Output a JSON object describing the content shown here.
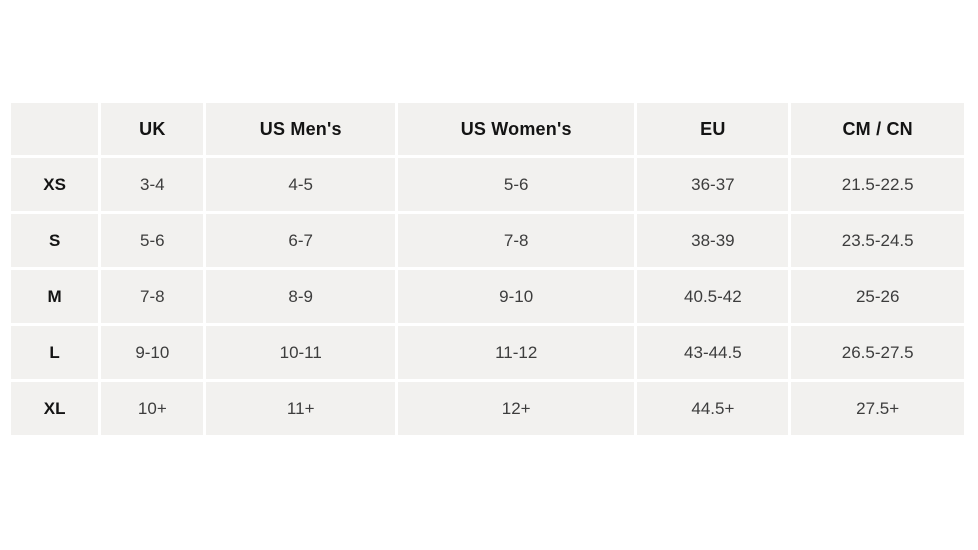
{
  "size_chart": {
    "columns": [
      "",
      "UK",
      "US Men's",
      "US Women's",
      "EU",
      "CM / CN"
    ],
    "rows": [
      {
        "size": "XS",
        "values": [
          "3-4",
          "4-5",
          "5-6",
          "36-37",
          "21.5-22.5"
        ]
      },
      {
        "size": "S",
        "values": [
          "5-6",
          "6-7",
          "7-8",
          "38-39",
          "23.5-24.5"
        ]
      },
      {
        "size": "M",
        "values": [
          "7-8",
          "8-9",
          "9-10",
          "40.5-42",
          "25-26"
        ]
      },
      {
        "size": "L",
        "values": [
          "9-10",
          "10-11",
          "11-12",
          "43-44.5",
          "26.5-27.5"
        ]
      },
      {
        "size": "XL",
        "values": [
          "10+",
          "11+",
          "12+",
          "44.5+",
          "27.5+"
        ]
      }
    ],
    "colors": {
      "page_background": "#ffffff",
      "cell_background": "#f2f1ef",
      "cell_gap": "#ffffff",
      "header_text": "#141414",
      "body_text": "#3d3d3d"
    }
  }
}
